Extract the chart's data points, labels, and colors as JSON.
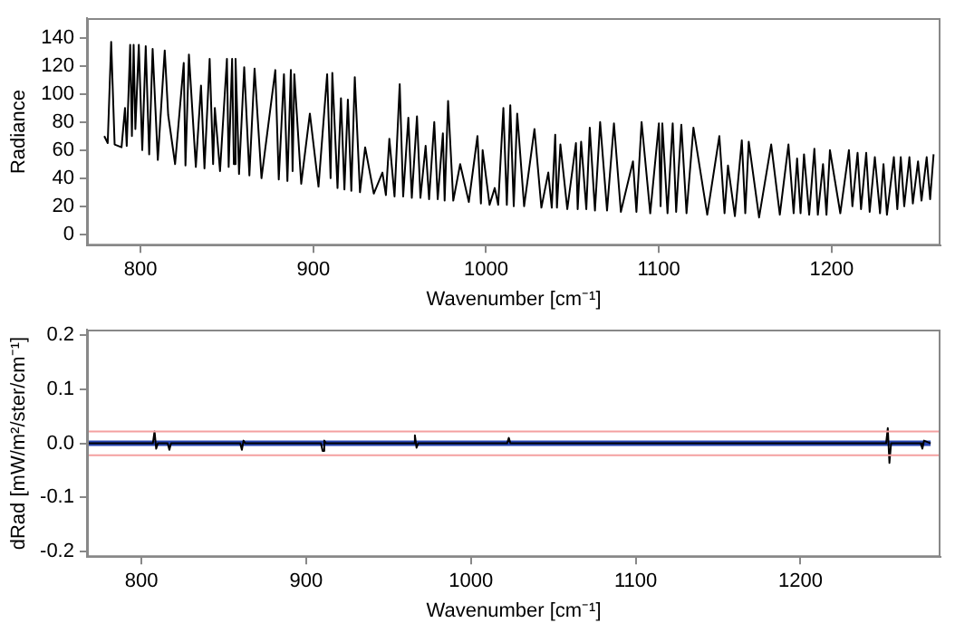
{
  "chart_data": [
    {
      "type": "line",
      "xlabel": "Wavenumber [cm⁻¹]",
      "ylabel": "Radiance",
      "xlim": [
        769,
        1263
      ],
      "xticks": [
        800,
        900,
        1000,
        1100,
        1200
      ],
      "ylim": [
        -8,
        154
      ],
      "yticks": [
        0,
        20,
        40,
        60,
        80,
        100,
        120,
        140
      ],
      "grid": false,
      "marker": "none",
      "line_style": "solid",
      "series": [
        {
          "color": "#000000",
          "x": [
            779,
            781,
            783,
            785,
            789,
            791,
            792,
            794,
            795,
            796,
            797,
            799,
            801,
            803,
            805,
            807,
            810,
            814,
            816,
            820,
            825,
            826,
            828,
            832,
            835,
            837,
            840,
            842,
            843,
            846,
            850,
            851,
            853,
            854,
            855,
            857,
            860,
            863,
            866,
            870,
            878,
            880,
            883,
            885,
            887,
            888,
            889,
            893,
            898,
            903,
            908,
            910,
            911,
            914,
            916,
            918,
            920,
            922,
            924,
            927,
            930,
            935,
            940,
            942,
            944,
            947,
            950,
            952,
            955,
            957,
            960,
            962,
            965,
            967,
            970,
            972,
            975,
            976,
            978,
            981,
            985,
            990,
            995,
            997,
            998,
            1002,
            1005,
            1007,
            1010,
            1012,
            1014,
            1016,
            1018,
            1022,
            1028,
            1032,
            1036,
            1038,
            1040,
            1041,
            1043,
            1047,
            1052,
            1053,
            1055,
            1058,
            1060,
            1063,
            1066,
            1070,
            1074,
            1078,
            1085,
            1087,
            1090,
            1095,
            1100,
            1101,
            1102,
            1105,
            1108,
            1110,
            1113,
            1116,
            1120,
            1128,
            1135,
            1138,
            1140,
            1144,
            1148,
            1150,
            1152,
            1158,
            1165,
            1170,
            1175,
            1178,
            1180,
            1182,
            1184,
            1187,
            1190,
            1192,
            1195,
            1197,
            1199,
            1205,
            1210,
            1212,
            1215,
            1217,
            1220,
            1222,
            1225,
            1228,
            1230,
            1232,
            1236,
            1238,
            1240,
            1242,
            1245,
            1247,
            1250,
            1252,
            1255,
            1257,
            1259
          ],
          "values": [
            70,
            65,
            137,
            64,
            62,
            90,
            63,
            135,
            70,
            135,
            75,
            135,
            60,
            134,
            57,
            132,
            53,
            131,
            85,
            50,
            122,
            49,
            128,
            48,
            106,
            47,
            125,
            50,
            90,
            45,
            125,
            48,
            125,
            50,
            125,
            43,
            119,
            42,
            118,
            40,
            117,
            39,
            114,
            38,
            117,
            45,
            114,
            36,
            86,
            34,
            114,
            40,
            115,
            33,
            97,
            32,
            96,
            31,
            112,
            30,
            62,
            29,
            44,
            28,
            68,
            27,
            107,
            27,
            83,
            26,
            84,
            26,
            63,
            25,
            80,
            25,
            72,
            24,
            95,
            24,
            50,
            23,
            70,
            22,
            60,
            21,
            33,
            21,
            90,
            21,
            92,
            20,
            86,
            20,
            75,
            19,
            44,
            19,
            71,
            19,
            64,
            18,
            65,
            18,
            66,
            18,
            76,
            17,
            80,
            17,
            79,
            16,
            52,
            16,
            80,
            15,
            79,
            20,
            79,
            15,
            79,
            16,
            78,
            15,
            76,
            14,
            70,
            15,
            49,
            13,
            67,
            15,
            66,
            12,
            64,
            14,
            64,
            15,
            54,
            15,
            57,
            14,
            61,
            14,
            50,
            14,
            60,
            15,
            60,
            20,
            58,
            18,
            58,
            16,
            55,
            15,
            50,
            14,
            55,
            18,
            55,
            20,
            55,
            22,
            52,
            24,
            55,
            25,
            57
          ]
        }
      ]
    },
    {
      "type": "line",
      "xlabel": "Wavenumber [cm⁻¹]",
      "ylabel": "dRad [mW/m²/ster/cm⁻¹]",
      "xlim": [
        767,
        1285
      ],
      "xticks": [
        800,
        900,
        1000,
        1100,
        1200
      ],
      "ylim": [
        -0.21,
        0.21
      ],
      "yticks": [
        -0.2,
        -0.1,
        {
          "value": 0,
          "label": "0.0"
        },
        0.1,
        0.2
      ],
      "grid": false,
      "marker": "none",
      "line_style": "solid",
      "ref_lines": [
        {
          "axis": "y",
          "value": 0.022,
          "color": "#f4a0a0"
        },
        {
          "axis": "y",
          "value": -0.022,
          "color": "#f4a0a0"
        }
      ],
      "series": [
        {
          "color": "#000000",
          "x": [
            768,
            807,
            808,
            809,
            810,
            816,
            817,
            818,
            860,
            861,
            862,
            863,
            909,
            910,
            911,
            912,
            965,
            966,
            967,
            968,
            1022,
            1023,
            1024,
            1252,
            1253,
            1254,
            1255,
            1273,
            1274,
            1275,
            1279
          ],
          "values": [
            0,
            0,
            0.022,
            -0.01,
            0,
            0,
            -0.012,
            0,
            0,
            -0.012,
            0.005,
            0,
            0,
            -0.014,
            0.005,
            0,
            0,
            0.015,
            -0.008,
            0,
            0,
            0.01,
            0,
            0,
            0.028,
            -0.036,
            0,
            0,
            -0.01,
            0.005,
            0
          ]
        },
        {
          "color": "#2846b4",
          "x": [
            768,
            1279
          ],
          "values": [
            0,
            0
          ]
        }
      ]
    }
  ]
}
